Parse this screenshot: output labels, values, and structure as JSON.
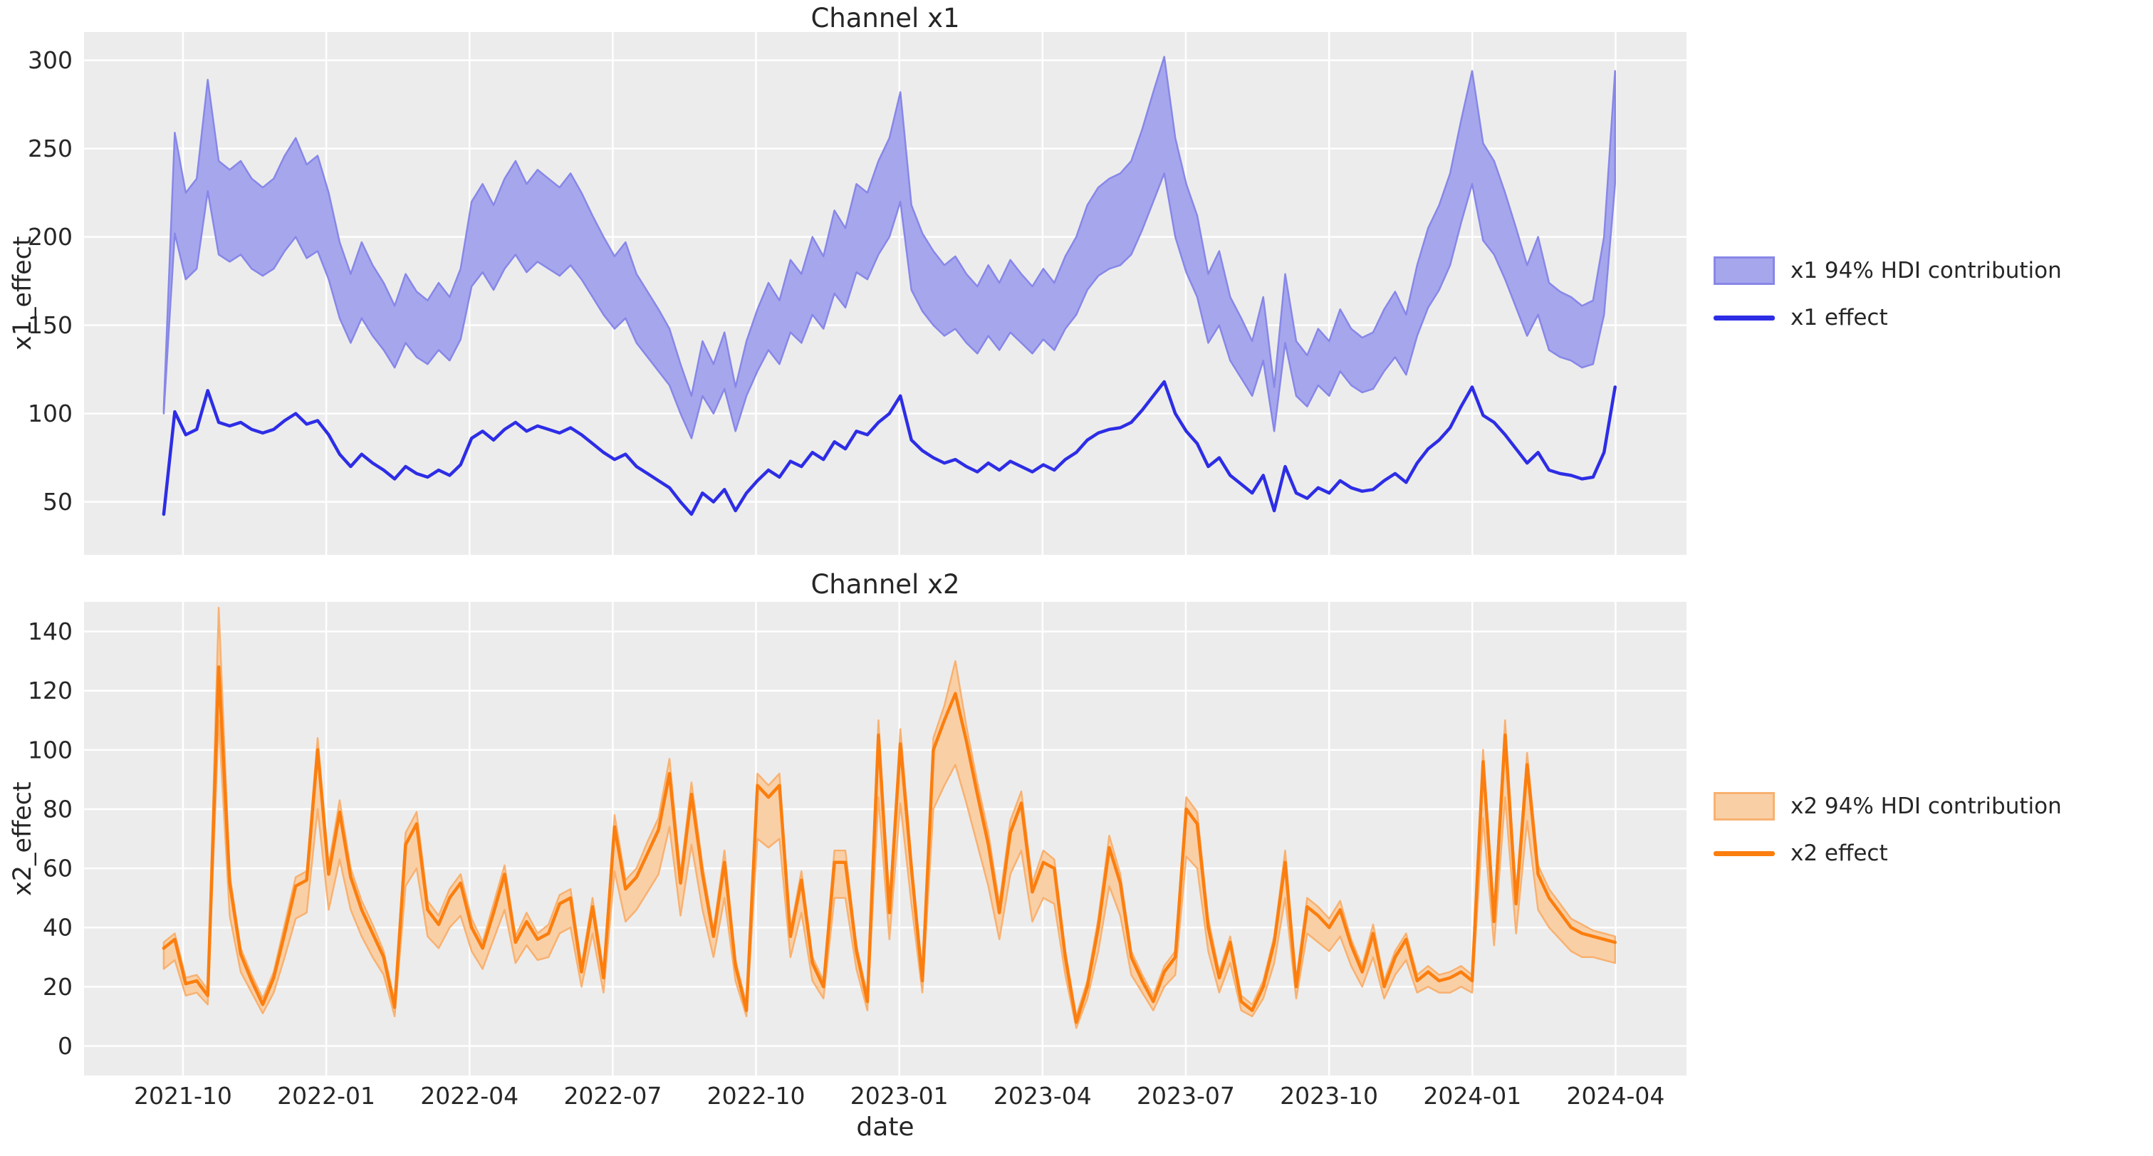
{
  "figure": {
    "background": "#ffffff",
    "axes_background": "#ececec",
    "grid_color": "#ffffff",
    "text_color": "#262626"
  },
  "chart_data": [
    {
      "type": "line",
      "title": "Channel x1",
      "ylabel": "x1_effect",
      "xlabel": "",
      "legend": [
        "x1 94% HDI contribution",
        "x1 effect"
      ],
      "legend_position": "right",
      "grid": true,
      "x_frequency": "weekly",
      "x_start_date": "2021-09-26",
      "x_end_date": "2024-04-07",
      "n_points": 133,
      "x_tick_labels": [
        "2021-10",
        "2022-01",
        "2022-04",
        "2022-07",
        "2022-10",
        "2023-01",
        "2023-04",
        "2023-07",
        "2023-10",
        "2024-01",
        "2024-04"
      ],
      "y_ticks": [
        50,
        100,
        150,
        200,
        250,
        300
      ],
      "ylim": [
        20,
        316
      ],
      "colors": {
        "line": "#2d2de6",
        "band_fill": "#a6a6ed",
        "band_edge": "#8787e8"
      },
      "series": [
        {
          "name": "x1 effect",
          "values": [
            43,
            101,
            88,
            91,
            113,
            95,
            93,
            95,
            91,
            89,
            91,
            96,
            100,
            94,
            96,
            88,
            77,
            70,
            77,
            72,
            68,
            63,
            70,
            66,
            64,
            68,
            65,
            71,
            86,
            90,
            85,
            91,
            95,
            90,
            93,
            91,
            89,
            92,
            88,
            83,
            78,
            74,
            77,
            70,
            66,
            62,
            58,
            50,
            43,
            55,
            50,
            57,
            45,
            55,
            62,
            68,
            64,
            73,
            70,
            78,
            74,
            84,
            80,
            90,
            88,
            95,
            100,
            110,
            85,
            79,
            75,
            72,
            74,
            70,
            67,
            72,
            68,
            73,
            70,
            67,
            71,
            68,
            74,
            78,
            85,
            89,
            91,
            92,
            95,
            102,
            110,
            118,
            100,
            90,
            83,
            70,
            75,
            65,
            60,
            55,
            65,
            45,
            70,
            55,
            52,
            58,
            55,
            62,
            58,
            56,
            57,
            62,
            66,
            61,
            72,
            80,
            85,
            92,
            104,
            115,
            99,
            95,
            88,
            80,
            72,
            78,
            68,
            66,
            65,
            63,
            64,
            78,
            115
          ]
        },
        {
          "name": "x1 94% HDI lower",
          "values": [
            100,
            202,
            176,
            182,
            226,
            190,
            186,
            190,
            182,
            178,
            182,
            192,
            200,
            188,
            192,
            176,
            154,
            140,
            154,
            144,
            136,
            126,
            140,
            132,
            128,
            136,
            130,
            142,
            172,
            180,
            170,
            182,
            190,
            180,
            186,
            182,
            178,
            184,
            176,
            166,
            156,
            148,
            154,
            140,
            132,
            124,
            116,
            100,
            86,
            110,
            100,
            114,
            90,
            110,
            124,
            136,
            128,
            146,
            140,
            156,
            148,
            168,
            160,
            180,
            176,
            190,
            200,
            220,
            170,
            158,
            150,
            144,
            148,
            140,
            134,
            144,
            136,
            146,
            140,
            134,
            142,
            136,
            148,
            156,
            170,
            178,
            182,
            184,
            190,
            204,
            220,
            236,
            200,
            180,
            166,
            140,
            150,
            130,
            120,
            110,
            130,
            90,
            140,
            110,
            104,
            116,
            110,
            124,
            116,
            112,
            114,
            124,
            132,
            122,
            144,
            160,
            170,
            184,
            208,
            230,
            198,
            190,
            176,
            160,
            144,
            156,
            136,
            132,
            130,
            126,
            128,
            156,
            230
          ]
        },
        {
          "name": "x1 94% HDI upper",
          "values": [
            103,
            259,
            225,
            233,
            289,
            243,
            238,
            243,
            233,
            228,
            233,
            246,
            256,
            241,
            246,
            225,
            197,
            179,
            197,
            184,
            174,
            161,
            179,
            169,
            164,
            174,
            166,
            182,
            220,
            230,
            218,
            233,
            243,
            230,
            238,
            233,
            228,
            236,
            225,
            212,
            200,
            189,
            197,
            179,
            169,
            159,
            148,
            128,
            110,
            141,
            128,
            146,
            115,
            141,
            159,
            174,
            164,
            187,
            179,
            200,
            189,
            215,
            205,
            230,
            225,
            243,
            256,
            282,
            218,
            202,
            192,
            184,
            189,
            179,
            172,
            184,
            174,
            187,
            179,
            172,
            182,
            174,
            189,
            200,
            218,
            228,
            233,
            236,
            243,
            261,
            282,
            302,
            256,
            230,
            212,
            179,
            192,
            166,
            154,
            141,
            166,
            115,
            179,
            141,
            133,
            148,
            141,
            159,
            148,
            143,
            146,
            159,
            169,
            156,
            184,
            205,
            218,
            236,
            266,
            294,
            253,
            243,
            225,
            205,
            184,
            200,
            174,
            169,
            166,
            161,
            164,
            200,
            294
          ]
        }
      ]
    },
    {
      "type": "line",
      "title": "Channel x2",
      "ylabel": "x2_effect",
      "xlabel": "date",
      "legend": [
        "x2 94% HDI contribution",
        "x2 effect"
      ],
      "legend_position": "right",
      "grid": true,
      "x_frequency": "weekly",
      "x_start_date": "2021-09-26",
      "x_end_date": "2024-04-07",
      "n_points": 133,
      "x_tick_labels": [
        "2021-10",
        "2022-01",
        "2022-04",
        "2022-07",
        "2022-10",
        "2023-01",
        "2023-04",
        "2023-07",
        "2023-10",
        "2024-01",
        "2024-04"
      ],
      "y_ticks": [
        0,
        20,
        40,
        60,
        80,
        100,
        120,
        140
      ],
      "ylim": [
        -10,
        150
      ],
      "colors": {
        "line": "#fb7e0e",
        "band_fill": "#f9cfa6",
        "band_edge": "#f8b170"
      },
      "series": [
        {
          "name": "x2 effect",
          "values": [
            33,
            36,
            21,
            22,
            17,
            128,
            55,
            31,
            22,
            14,
            23,
            38,
            54,
            56,
            100,
            58,
            79,
            57,
            46,
            38,
            30,
            13,
            68,
            75,
            46,
            41,
            50,
            55,
            40,
            33,
            45,
            58,
            35,
            42,
            36,
            38,
            48,
            50,
            25,
            47,
            23,
            74,
            53,
            57,
            65,
            73,
            92,
            55,
            85,
            58,
            37,
            62,
            27,
            12,
            88,
            84,
            88,
            37,
            56,
            28,
            20,
            62,
            62,
            32,
            15,
            105,
            45,
            102,
            60,
            22,
            100,
            110,
            119,
            103,
            85,
            68,
            45,
            72,
            82,
            52,
            62,
            60,
            30,
            8,
            20,
            40,
            67,
            55,
            30,
            22,
            15,
            25,
            30,
            80,
            75,
            40,
            23,
            35,
            15,
            12,
            20,
            35,
            62,
            20,
            47,
            44,
            40,
            46,
            34,
            25,
            38,
            20,
            30,
            36,
            22,
            25,
            22,
            23,
            25,
            22,
            96,
            42,
            105,
            48,
            95,
            58,
            50,
            45,
            40,
            38,
            37,
            36,
            35
          ]
        },
        {
          "name": "x2 94% HDI lower",
          "values": [
            26,
            29,
            17,
            18,
            14,
            110,
            44,
            25,
            18,
            11,
            18,
            30,
            43,
            45,
            80,
            46,
            63,
            46,
            37,
            30,
            24,
            10,
            54,
            60,
            37,
            33,
            40,
            44,
            32,
            26,
            36,
            46,
            28,
            34,
            29,
            30,
            38,
            40,
            20,
            38,
            18,
            59,
            42,
            46,
            52,
            58,
            74,
            44,
            68,
            46,
            30,
            50,
            22,
            10,
            70,
            67,
            70,
            30,
            45,
            22,
            16,
            50,
            50,
            26,
            12,
            84,
            36,
            82,
            48,
            18,
            80,
            88,
            95,
            82,
            68,
            54,
            36,
            58,
            66,
            42,
            50,
            48,
            24,
            6,
            16,
            32,
            54,
            44,
            24,
            18,
            12,
            20,
            24,
            64,
            60,
            32,
            18,
            28,
            12,
            10,
            16,
            28,
            50,
            16,
            38,
            35,
            32,
            37,
            27,
            20,
            30,
            16,
            24,
            29,
            18,
            20,
            18,
            18,
            20,
            18,
            77,
            34,
            84,
            38,
            76,
            46,
            40,
            36,
            32,
            30,
            30,
            29,
            28
          ]
        },
        {
          "name": "x2 94% HDI upper",
          "values": [
            35,
            38,
            23,
            24,
            19,
            148,
            58,
            33,
            24,
            16,
            25,
            41,
            57,
            59,
            104,
            61,
            83,
            60,
            49,
            41,
            32,
            15,
            72,
            79,
            49,
            44,
            53,
            58,
            43,
            35,
            48,
            61,
            37,
            45,
            38,
            41,
            51,
            53,
            27,
            50,
            25,
            78,
            56,
            60,
            69,
            77,
            97,
            58,
            89,
            61,
            39,
            66,
            29,
            14,
            92,
            88,
            92,
            39,
            59,
            30,
            22,
            66,
            66,
            34,
            17,
            110,
            48,
            107,
            63,
            24,
            104,
            115,
            130,
            108,
            89,
            72,
            48,
            76,
            86,
            55,
            66,
            63,
            32,
            10,
            22,
            43,
            71,
            58,
            32,
            24,
            17,
            27,
            32,
            84,
            79,
            43,
            25,
            37,
            17,
            14,
            22,
            37,
            66,
            22,
            50,
            47,
            43,
            49,
            36,
            27,
            41,
            22,
            32,
            38,
            24,
            27,
            24,
            25,
            27,
            24,
            100,
            45,
            110,
            51,
            99,
            61,
            53,
            48,
            43,
            41,
            39,
            38,
            37
          ]
        }
      ]
    }
  ]
}
